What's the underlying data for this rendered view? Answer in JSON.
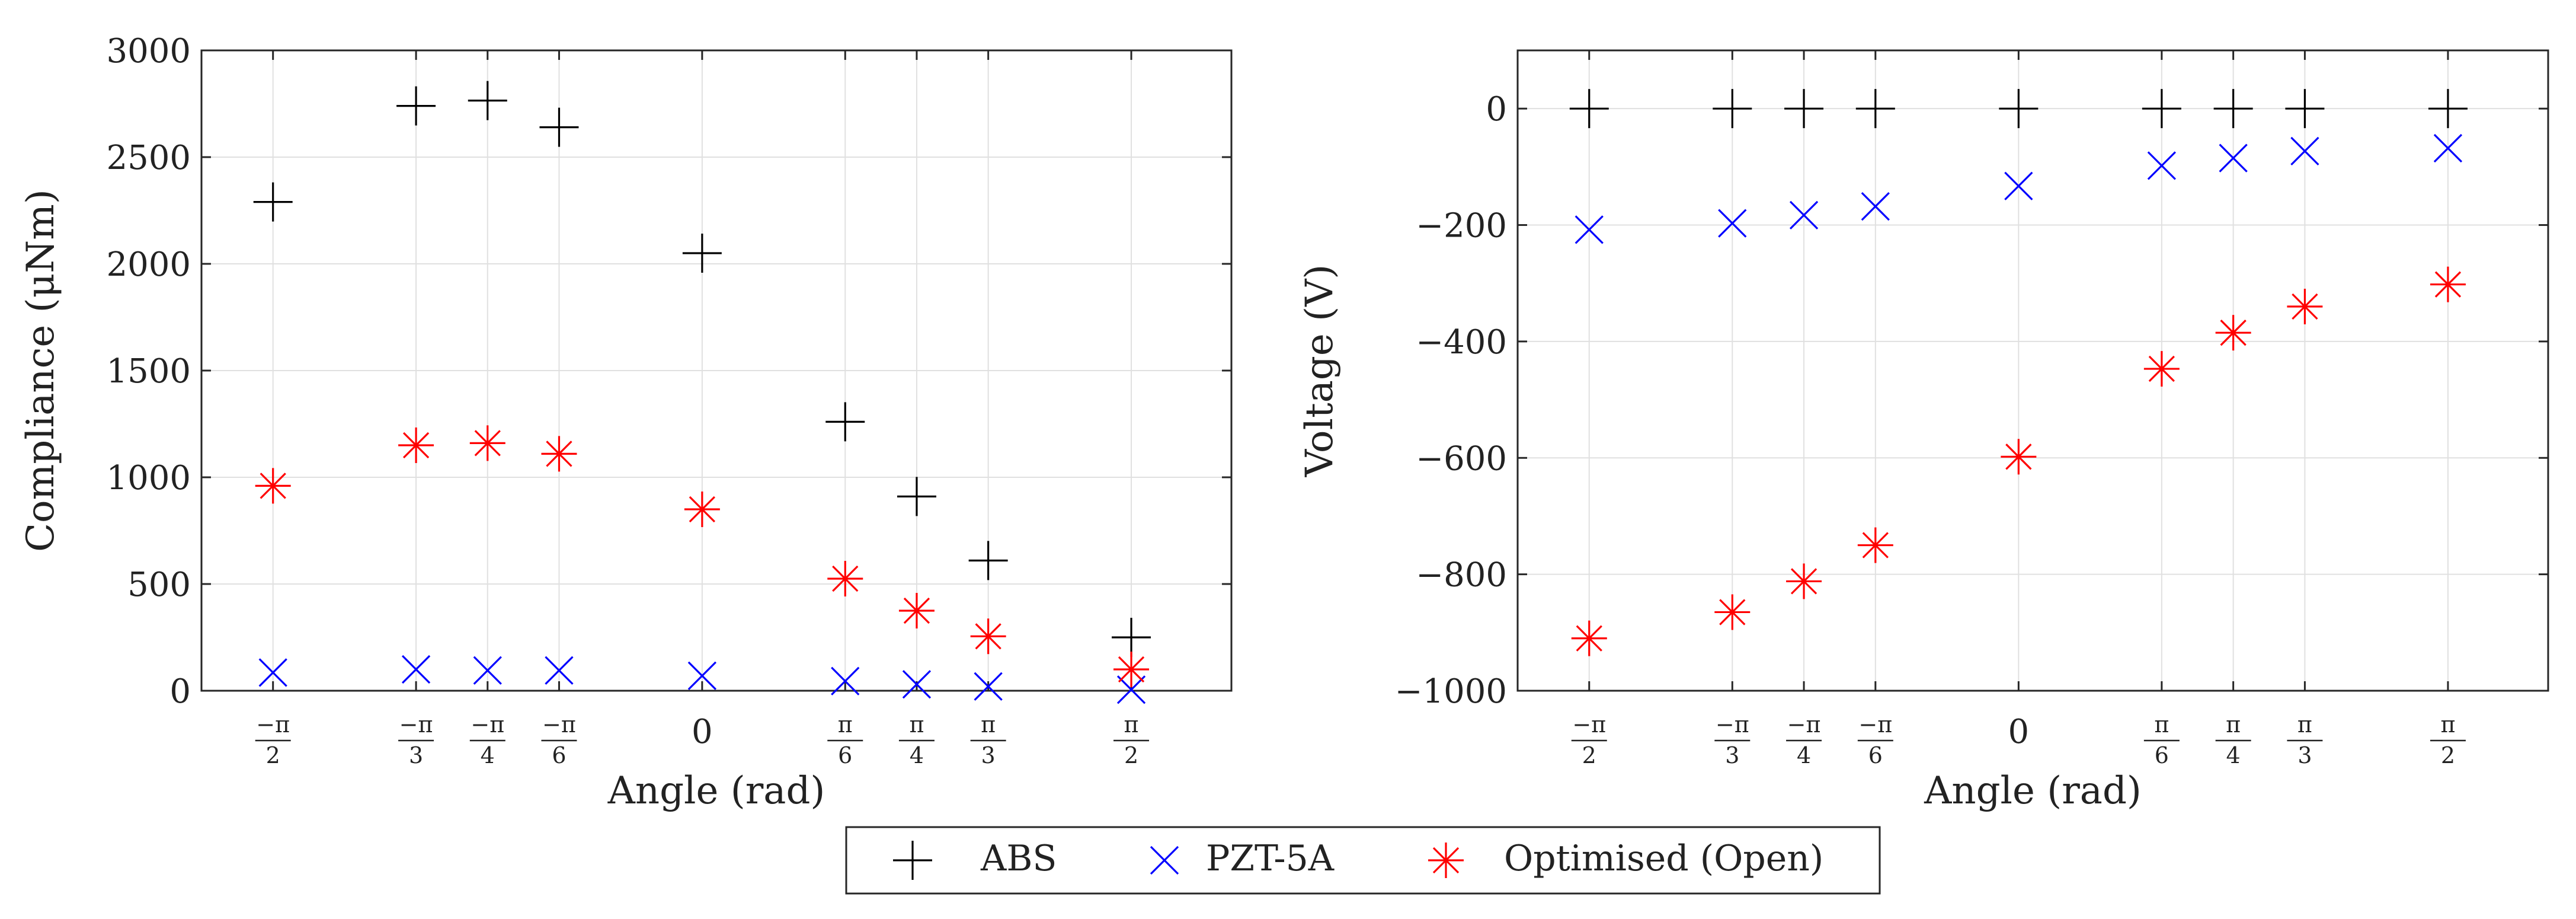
{
  "chart_data": [
    {
      "type": "scatter",
      "xlabel": "Angle (rad)",
      "ylabel": "Compliance (μNm)",
      "ylim": [
        0,
        3000
      ],
      "yticks": [
        0,
        500,
        1000,
        1500,
        2000,
        2500,
        3000
      ],
      "xlim": [
        -1.8326,
        1.9373
      ],
      "grid": true,
      "x_tick_labels": [
        {
          "value": -1.5708,
          "num": "−π",
          "den": "2"
        },
        {
          "value": -1.0472,
          "num": "−π",
          "den": "3"
        },
        {
          "value": -0.7854,
          "num": "−π",
          "den": "4"
        },
        {
          "value": -0.5236,
          "num": "−π",
          "den": "6"
        },
        {
          "value": 0,
          "text": "0"
        },
        {
          "value": 0.5236,
          "num": "π",
          "den": "6"
        },
        {
          "value": 0.7854,
          "num": "π",
          "den": "4"
        },
        {
          "value": 1.0472,
          "num": "π",
          "den": "3"
        },
        {
          "value": 1.5708,
          "num": "π",
          "den": "2"
        }
      ],
      "series": [
        {
          "name": "ABS",
          "marker": "plus",
          "color": "#000000",
          "x": [
            -1.5708,
            -1.0472,
            -0.7854,
            -0.5236,
            0,
            0.5236,
            0.7854,
            1.0472,
            1.5708
          ],
          "y": [
            2290,
            2740,
            2765,
            2640,
            2050,
            1260,
            910,
            610,
            250
          ]
        },
        {
          "name": "PZT-5A",
          "marker": "cross",
          "color": "#0000ff",
          "x": [
            -1.5708,
            -1.0472,
            -0.7854,
            -0.5236,
            0,
            0.5236,
            0.7854,
            1.0472,
            1.5708
          ],
          "y": [
            85,
            100,
            95,
            95,
            70,
            45,
            30,
            20,
            5
          ]
        },
        {
          "name": "Optimised (Open)",
          "marker": "star",
          "color": "#ff0000",
          "x": [
            -1.5708,
            -1.0472,
            -0.7854,
            -0.5236,
            0,
            0.5236,
            0.7854,
            1.0472,
            1.5708
          ],
          "y": [
            960,
            1150,
            1160,
            1110,
            850,
            525,
            375,
            255,
            100
          ]
        }
      ]
    },
    {
      "type": "scatter",
      "xlabel": "Angle (rad)",
      "ylabel": "Voltage (V)",
      "ylim": [
        -1000,
        100
      ],
      "yticks": [
        -1000,
        -800,
        -600,
        -400,
        -200,
        0
      ],
      "xlim": [
        -1.8326,
        1.9373
      ],
      "grid": true,
      "x_tick_labels": [
        {
          "value": -1.5708,
          "num": "−π",
          "den": "2"
        },
        {
          "value": -1.0472,
          "num": "−π",
          "den": "3"
        },
        {
          "value": -0.7854,
          "num": "−π",
          "den": "4"
        },
        {
          "value": -0.5236,
          "num": "−π",
          "den": "6"
        },
        {
          "value": 0,
          "text": "0"
        },
        {
          "value": 0.5236,
          "num": "π",
          "den": "6"
        },
        {
          "value": 0.7854,
          "num": "π",
          "den": "4"
        },
        {
          "value": 1.0472,
          "num": "π",
          "den": "3"
        },
        {
          "value": 1.5708,
          "num": "π",
          "den": "2"
        }
      ],
      "series": [
        {
          "name": "ABS",
          "marker": "plus",
          "color": "#000000",
          "x": [
            -1.5708,
            -1.0472,
            -0.7854,
            -0.5236,
            0,
            0.5236,
            0.7854,
            1.0472,
            1.5708
          ],
          "y": [
            0,
            0,
            0,
            0,
            0,
            0,
            0,
            0,
            0
          ]
        },
        {
          "name": "PZT-5A",
          "marker": "cross",
          "color": "#0000ff",
          "x": [
            -1.5708,
            -1.0472,
            -0.7854,
            -0.5236,
            0,
            0.5236,
            0.7854,
            1.0472,
            1.5708
          ],
          "y": [
            -208,
            -197,
            -183,
            -168,
            -133,
            -98,
            -85,
            -73,
            -68
          ]
        },
        {
          "name": "Optimised (Open)",
          "marker": "star",
          "color": "#ff0000",
          "x": [
            -1.5708,
            -1.0472,
            -0.7854,
            -0.5236,
            0,
            0.5236,
            0.7854,
            1.0472,
            1.5708
          ],
          "y": [
            -910,
            -865,
            -812,
            -750,
            -598,
            -447,
            -385,
            -340,
            -302
          ]
        }
      ]
    }
  ],
  "legend": {
    "placement": "bottom-center",
    "entries": [
      {
        "label": "ABS",
        "marker": "plus",
        "color": "#000000"
      },
      {
        "label": "PZT-5A",
        "marker": "cross",
        "color": "#0000ff"
      },
      {
        "label": "Optimised (Open)",
        "marker": "star",
        "color": "#ff0000"
      }
    ]
  }
}
